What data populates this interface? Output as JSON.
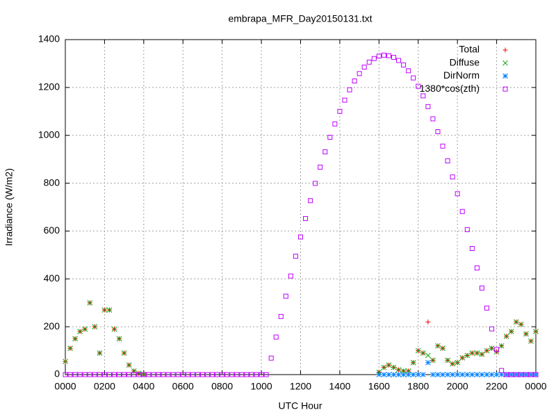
{
  "chart_data": {
    "type": "scatter",
    "title": "embrapa_MFR_Day20150131.txt",
    "x_label": "UTC Hour",
    "y_label": "Irradiance (W/m2)",
    "x": [
      0,
      0.25,
      0.5,
      0.75,
      1,
      1.25,
      1.5,
      1.75,
      2,
      2.25,
      2.5,
      2.75,
      3,
      3.25,
      3.5,
      3.75,
      4,
      4.25,
      4.5,
      4.75,
      5,
      5.25,
      5.5,
      5.75,
      6,
      6.25,
      6.5,
      6.75,
      7,
      7.25,
      7.5,
      7.75,
      8,
      8.25,
      8.5,
      8.75,
      9,
      9.25,
      9.5,
      9.75,
      10,
      10.25,
      10.5,
      10.75,
      11,
      11.25,
      11.5,
      11.75,
      12,
      12.25,
      12.5,
      12.75,
      13,
      13.25,
      13.5,
      13.75,
      14,
      14.25,
      14.5,
      14.75,
      15,
      15.25,
      15.5,
      15.75,
      16,
      16.25,
      16.5,
      16.75,
      17,
      17.25,
      17.5,
      17.75,
      18,
      18.25,
      18.5,
      18.75,
      19,
      19.25,
      19.5,
      19.75,
      20,
      20.25,
      20.5,
      20.75,
      21,
      21.25,
      21.5,
      21.75,
      22,
      22.25,
      22.5,
      22.75,
      23,
      23.25,
      23.5,
      23.75,
      24
    ],
    "series": [
      {
        "name": "Total",
        "color": "#ff0000",
        "marker": "plus",
        "values": [
          55,
          110,
          150,
          180,
          190,
          300,
          200,
          90,
          270,
          270,
          190,
          150,
          90,
          40,
          15,
          5,
          0,
          null,
          null,
          null,
          null,
          null,
          null,
          null,
          null,
          null,
          null,
          null,
          null,
          null,
          null,
          null,
          null,
          null,
          null,
          null,
          null,
          null,
          null,
          null,
          null,
          null,
          null,
          null,
          null,
          null,
          null,
          null,
          null,
          null,
          null,
          null,
          null,
          null,
          null,
          null,
          null,
          null,
          null,
          null,
          null,
          null,
          null,
          null,
          10,
          30,
          40,
          30,
          20,
          15,
          15,
          50,
          100,
          90,
          220,
          60,
          120,
          110,
          60,
          45,
          50,
          70,
          80,
          90,
          90,
          85,
          100,
          110,
          95,
          120,
          160,
          180,
          220,
          210,
          170,
          140,
          180
        ]
      },
      {
        "name": "Diffuse",
        "color": "#00a000",
        "marker": "cross",
        "values": [
          55,
          110,
          150,
          180,
          190,
          300,
          200,
          90,
          270,
          270,
          190,
          150,
          90,
          40,
          15,
          5,
          0,
          null,
          null,
          null,
          null,
          null,
          null,
          null,
          null,
          null,
          null,
          null,
          null,
          null,
          null,
          null,
          null,
          null,
          null,
          null,
          null,
          null,
          null,
          null,
          null,
          null,
          null,
          null,
          null,
          null,
          null,
          null,
          null,
          null,
          null,
          null,
          null,
          null,
          null,
          null,
          null,
          null,
          null,
          null,
          null,
          null,
          null,
          null,
          10,
          30,
          40,
          30,
          20,
          15,
          15,
          50,
          100,
          90,
          80,
          60,
          120,
          110,
          60,
          45,
          50,
          70,
          80,
          90,
          90,
          85,
          100,
          110,
          95,
          120,
          160,
          180,
          220,
          210,
          170,
          140,
          180
        ]
      },
      {
        "name": "DirNorm",
        "color": "#0080ff",
        "marker": "star",
        "values": [
          null,
          null,
          null,
          null,
          null,
          null,
          null,
          null,
          null,
          null,
          null,
          null,
          null,
          null,
          null,
          null,
          null,
          null,
          null,
          null,
          null,
          null,
          null,
          null,
          null,
          null,
          null,
          null,
          null,
          null,
          null,
          null,
          null,
          null,
          null,
          null,
          null,
          null,
          null,
          null,
          null,
          null,
          null,
          null,
          null,
          null,
          null,
          null,
          null,
          null,
          null,
          null,
          null,
          null,
          null,
          null,
          null,
          null,
          null,
          null,
          null,
          null,
          null,
          null,
          0,
          0,
          0,
          0,
          0,
          0,
          0,
          0,
          0,
          0,
          50,
          0,
          0,
          0,
          0,
          0,
          0,
          0,
          0,
          0,
          0,
          0,
          0,
          0,
          0,
          0,
          0,
          0,
          0,
          0,
          0,
          0,
          0
        ]
      },
      {
        "name": "1380*cos(zth)",
        "color": "#c000ff",
        "marker": "square",
        "values": [
          0,
          0,
          0,
          0,
          0,
          0,
          0,
          0,
          0,
          0,
          0,
          0,
          0,
          0,
          0,
          0,
          0,
          0,
          0,
          0,
          0,
          0,
          0,
          0,
          0,
          0,
          0,
          0,
          0,
          0,
          0,
          0,
          0,
          0,
          0,
          0,
          0,
          0,
          0,
          0,
          0,
          0,
          69,
          157,
          243,
          328,
          412,
          495,
          575,
          652,
          727,
          799,
          867,
          931,
          992,
          1048,
          1100,
          1147,
          1190,
          1227,
          1258,
          1285,
          1306,
          1321,
          1331,
          1335,
          1333,
          1326,
          1313,
          1294,
          1270,
          1240,
          1205,
          1165,
          1120,
          1069,
          1015,
          955,
          893,
          826,
          756,
          682,
          606,
          527,
          446,
          362,
          278,
          191,
          105,
          17,
          0,
          0,
          0,
          0,
          0,
          0,
          0
        ]
      }
    ],
    "xlim": [
      0,
      24
    ],
    "ylim": [
      0,
      1400
    ],
    "xticks": [
      {
        "value": 0,
        "label": "0000"
      },
      {
        "value": 2,
        "label": "0200"
      },
      {
        "value": 4,
        "label": "0400"
      },
      {
        "value": 6,
        "label": "0600"
      },
      {
        "value": 8,
        "label": "0800"
      },
      {
        "value": 10,
        "label": "1000"
      },
      {
        "value": 12,
        "label": "1200"
      },
      {
        "value": 14,
        "label": "1400"
      },
      {
        "value": 16,
        "label": "1600"
      },
      {
        "value": 18,
        "label": "1800"
      },
      {
        "value": 20,
        "label": "2000"
      },
      {
        "value": 22,
        "label": "2200"
      },
      {
        "value": 24,
        "label": "0000"
      }
    ],
    "yticks": [
      0,
      200,
      400,
      600,
      800,
      1000,
      1200,
      1400
    ],
    "grid": true,
    "legend": "top-right"
  }
}
